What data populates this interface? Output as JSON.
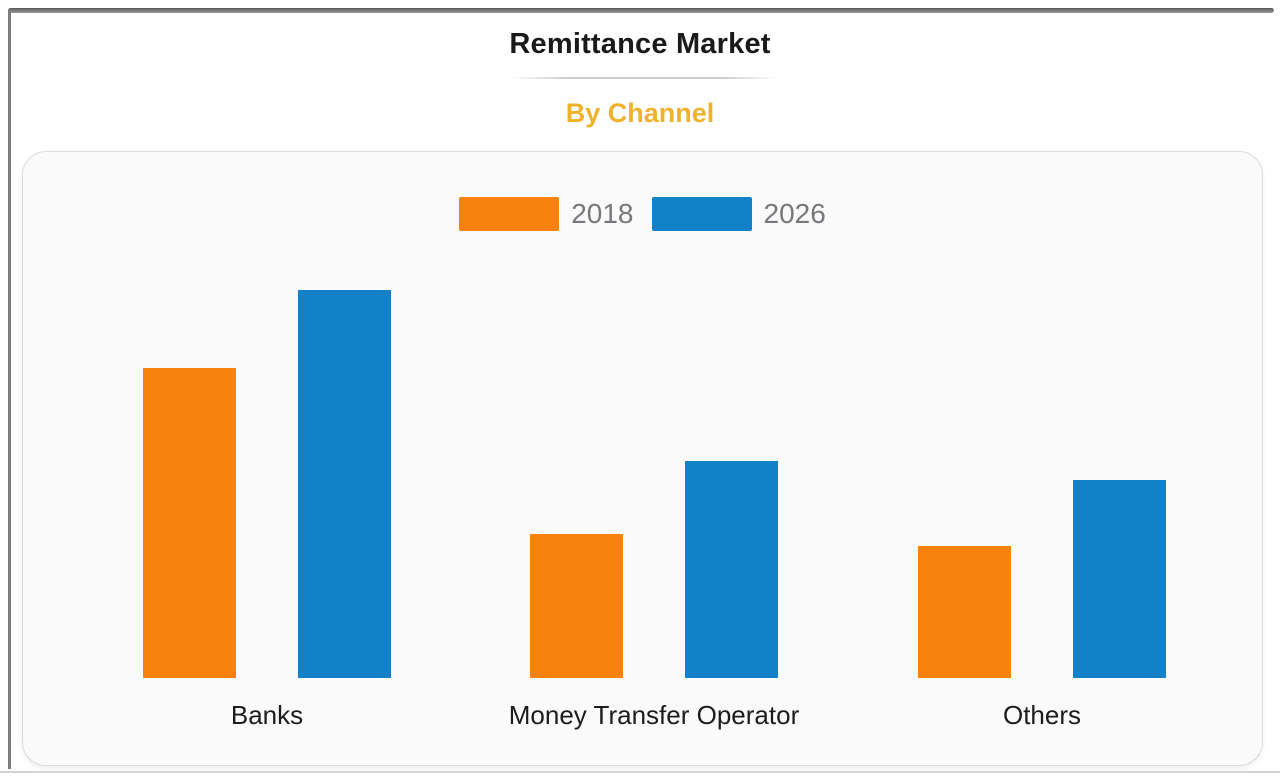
{
  "header": {
    "title": "Remittance Market",
    "subtitle": "By Channel",
    "title_color": "#1a1a1a",
    "subtitle_color": "#f0b22b"
  },
  "chart_data": {
    "type": "bar",
    "title": "Remittance Market",
    "subtitle": "By Channel",
    "categories": [
      "Banks",
      "Money Transfer Operator",
      "Others"
    ],
    "series": [
      {
        "name": "2018",
        "color": "#f8820d",
        "values": [
          80,
          37,
          34
        ]
      },
      {
        "name": "2026",
        "color": "#1381c7",
        "values": [
          100,
          56,
          51
        ]
      }
    ],
    "units": "relative height (tallest bar = 100); no y-axis shown",
    "ylim": [
      0,
      100
    ],
    "grid": false,
    "y_axis_visible": false,
    "legend_position": "top-center",
    "legend_text_color": "#77787b",
    "category_label_color": "#1c1c1c",
    "plot_background": "#fafafb"
  }
}
